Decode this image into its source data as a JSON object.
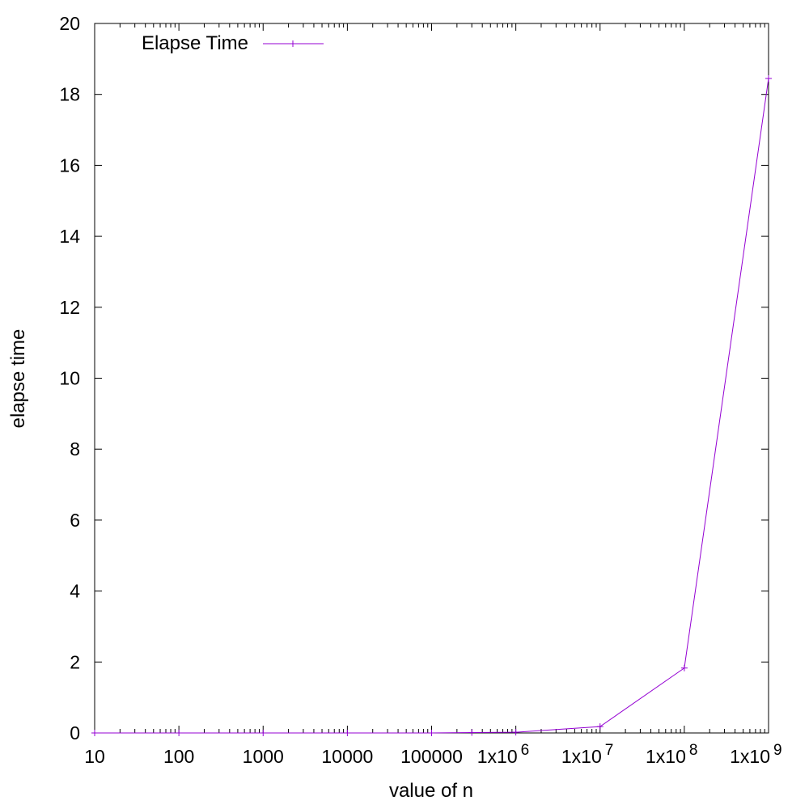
{
  "chart_data": {
    "type": "line",
    "title": "",
    "xlabel": "value of n",
    "ylabel": "elapse time",
    "x_scale": "log",
    "xlim": [
      10,
      1000000000
    ],
    "ylim": [
      0,
      20
    ],
    "grid": false,
    "legend_position": "top-left",
    "x_ticks": [
      {
        "value": 10,
        "mantissa": "10",
        "exp": ""
      },
      {
        "value": 100,
        "mantissa": "100",
        "exp": ""
      },
      {
        "value": 1000,
        "mantissa": "1000",
        "exp": ""
      },
      {
        "value": 10000,
        "mantissa": "10000",
        "exp": ""
      },
      {
        "value": 100000,
        "mantissa": "100000",
        "exp": ""
      },
      {
        "value": 1000000,
        "mantissa": "1x10",
        "exp": "6"
      },
      {
        "value": 10000000,
        "mantissa": "1x10",
        "exp": "7"
      },
      {
        "value": 100000000,
        "mantissa": "1x10",
        "exp": "8"
      },
      {
        "value": 1000000000,
        "mantissa": "1x10",
        "exp": "9"
      }
    ],
    "y_ticks": [
      "0",
      "2",
      "4",
      "6",
      "8",
      "10",
      "12",
      "14",
      "16",
      "18",
      "20"
    ],
    "series": [
      {
        "name": "Elapse Time",
        "color": "#9400d3",
        "x": [
          10,
          100,
          1000,
          10000,
          100000,
          300000,
          1000000,
          10000000,
          100000000,
          1000000000
        ],
        "y": [
          0,
          0,
          0,
          0,
          0,
          0.01,
          0.02,
          0.18,
          1.83,
          18.45
        ]
      }
    ]
  }
}
